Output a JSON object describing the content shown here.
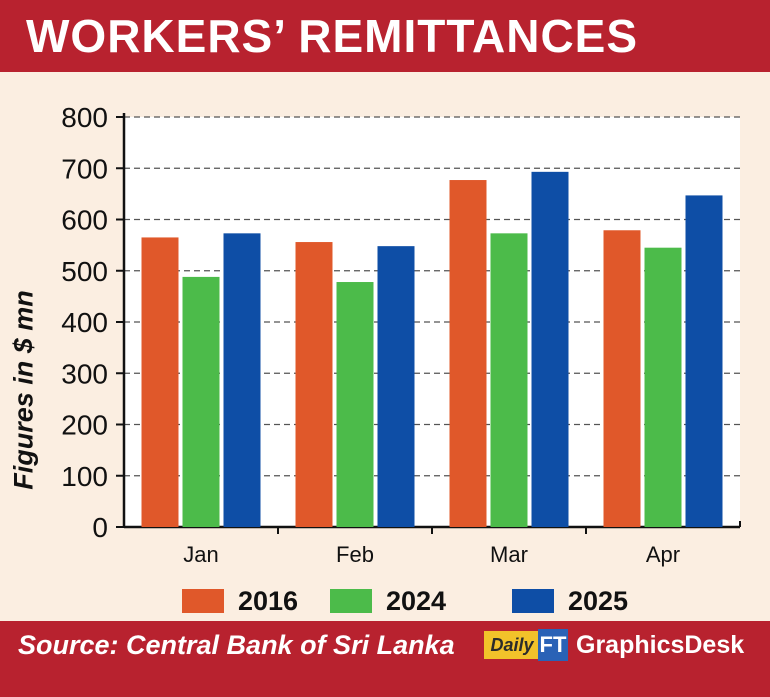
{
  "header": {
    "title": "WORKERS’ REMITTANCES"
  },
  "chart_data": {
    "type": "bar",
    "title": "WORKERS’ REMITTANCES",
    "ylabel": "Figures in $ mn",
    "xlabel": "",
    "categories": [
      "Jan",
      "Feb",
      "Mar",
      "Apr"
    ],
    "ylim": [
      0,
      800
    ],
    "yticks": [
      0,
      100,
      200,
      300,
      400,
      500,
      600,
      700,
      800
    ],
    "grid": true,
    "legend_position": "bottom",
    "series": [
      {
        "name": "2016",
        "color": "#e0582a",
        "values": [
          565,
          556,
          677,
          579
        ]
      },
      {
        "name": "2024",
        "color": "#4cbb4a",
        "values": [
          488,
          478,
          573,
          545
        ]
      },
      {
        "name": "2025",
        "color": "#0e4ea6",
        "values": [
          573,
          548,
          693,
          647
        ]
      }
    ]
  },
  "footer": {
    "source": "Source: Central Bank of Sri Lanka",
    "brand_daily": "Daily",
    "brand_ft": "FT",
    "brand_desk": "GraphicsDesk"
  }
}
